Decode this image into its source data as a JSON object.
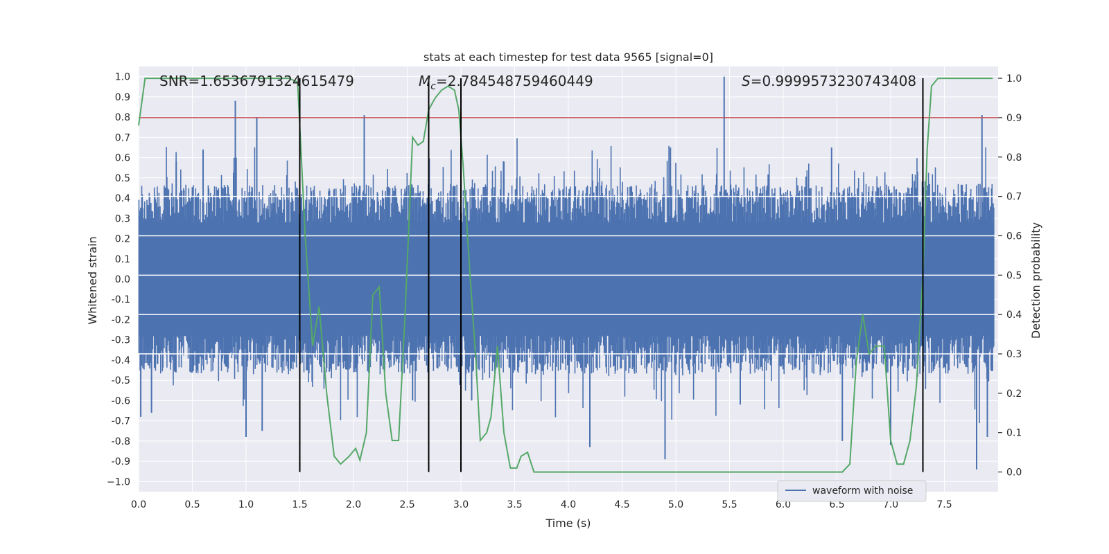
{
  "chart_data": {
    "type": "line",
    "title": "stats at each timestep for test data 9565 [signal=0]",
    "xlabel": "Time (s)",
    "ylabel": "Whitened strain",
    "y2label": "Detection probability",
    "xlim": [
      0.0,
      8.0
    ],
    "ylim": [
      -1.05,
      1.05
    ],
    "y2lim": [
      -0.05,
      1.03
    ],
    "xticks": [
      "0.0",
      "0.5",
      "1.0",
      "1.5",
      "2.0",
      "2.5",
      "3.0",
      "3.5",
      "4.0",
      "4.5",
      "5.0",
      "5.5",
      "6.0",
      "6.5",
      "7.0",
      "7.5"
    ],
    "yticks": [
      "1.0",
      "0.9",
      "0.8",
      "0.7",
      "0.6",
      "0.5",
      "0.4",
      "0.3",
      "0.2",
      "0.1",
      "0.0",
      "-0.1",
      "-0.2",
      "-0.3",
      "-0.4",
      "-0.5",
      "-0.6",
      "-0.7",
      "-0.8",
      "-0.9",
      "−1.0"
    ],
    "y2ticks": [
      "1.0",
      "0.9",
      "0.8",
      "0.7",
      "0.6",
      "0.5",
      "0.4",
      "0.3",
      "0.2",
      "0.1",
      "0.0"
    ],
    "annotations": {
      "snr": "SNR=1.6536791324615479",
      "mc_symbol": "M",
      "mc_sub": "c",
      "mc_value": "=2.784548759460449",
      "s_symbol": "S",
      "s_value": "=0.9999573230743408"
    },
    "threshold": {
      "value": 0.9,
      "axis": "y2",
      "color": "#c44e52"
    },
    "vlines": [
      1.5,
      2.7,
      3.0,
      7.3
    ],
    "waveform": {
      "name": "waveform with noise",
      "color": "#4c72b0",
      "envelope_upper": 0.42,
      "envelope_lower": -0.42,
      "spikes": [
        {
          "t": 0.9,
          "v": 0.88
        },
        {
          "t": 1.1,
          "v": 0.8
        },
        {
          "t": 2.1,
          "v": 0.81
        },
        {
          "t": 5.45,
          "v": 1.0
        },
        {
          "t": 7.85,
          "v": 0.81
        },
        {
          "t": 0.6,
          "v": 0.64
        },
        {
          "t": 0.35,
          "v": 0.58
        },
        {
          "t": 3.4,
          "v": 0.58
        },
        {
          "t": 4.95,
          "v": 0.65
        },
        {
          "t": 6.45,
          "v": 0.65
        },
        {
          "t": 0.02,
          "v": -0.68
        },
        {
          "t": 0.12,
          "v": -0.66
        },
        {
          "t": 1.0,
          "v": -0.78
        },
        {
          "t": 1.15,
          "v": -0.75
        },
        {
          "t": 2.55,
          "v": -0.6
        },
        {
          "t": 2.7,
          "v": -0.88
        },
        {
          "t": 4.2,
          "v": -0.83
        },
        {
          "t": 4.9,
          "v": -0.89
        },
        {
          "t": 6.55,
          "v": -0.8
        },
        {
          "t": 7.0,
          "v": -0.82
        },
        {
          "t": 7.8,
          "v": -0.94
        },
        {
          "t": 7.9,
          "v": -0.78
        },
        {
          "t": 3.1,
          "v": -0.6
        },
        {
          "t": 5.6,
          "v": -0.62
        }
      ]
    },
    "probability": {
      "color": "#55a868",
      "x": [
        0.0,
        0.06,
        0.1,
        0.2,
        0.4,
        0.6,
        0.8,
        1.0,
        1.2,
        1.4,
        1.48,
        1.55,
        1.62,
        1.68,
        1.75,
        1.82,
        1.88,
        1.96,
        2.02,
        2.06,
        2.12,
        2.18,
        2.24,
        2.3,
        2.36,
        2.42,
        2.48,
        2.55,
        2.6,
        2.65,
        2.7,
        2.76,
        2.82,
        2.88,
        2.94,
        2.98,
        3.02,
        3.08,
        3.14,
        3.18,
        3.24,
        3.28,
        3.34,
        3.4,
        3.46,
        3.52,
        3.56,
        3.62,
        3.68,
        3.74,
        3.8,
        3.9,
        4.0,
        4.2,
        4.5,
        5.0,
        5.5,
        6.0,
        6.2,
        6.4,
        6.55,
        6.62,
        6.68,
        6.74,
        6.8,
        6.86,
        6.94,
        7.0,
        7.06,
        7.12,
        7.18,
        7.24,
        7.3,
        7.34,
        7.38,
        7.44,
        7.5,
        7.7,
        7.95
      ],
      "y": [
        0.88,
        1.0,
        1.0,
        1.0,
        1.0,
        1.0,
        1.0,
        1.0,
        1.0,
        1.0,
        0.99,
        0.6,
        0.32,
        0.42,
        0.2,
        0.04,
        0.02,
        0.04,
        0.06,
        0.03,
        0.1,
        0.45,
        0.47,
        0.2,
        0.08,
        0.08,
        0.4,
        0.85,
        0.83,
        0.84,
        0.92,
        0.95,
        0.97,
        0.98,
        0.97,
        0.92,
        0.78,
        0.52,
        0.28,
        0.08,
        0.1,
        0.14,
        0.32,
        0.1,
        0.01,
        0.01,
        0.04,
        0.05,
        0.0,
        0.0,
        0.0,
        0.0,
        0.0,
        0.0,
        0.0,
        0.0,
        0.0,
        0.0,
        0.0,
        0.0,
        0.0,
        0.02,
        0.28,
        0.4,
        0.3,
        0.32,
        0.32,
        0.08,
        0.02,
        0.02,
        0.08,
        0.22,
        0.5,
        0.82,
        0.98,
        1.0,
        1.0,
        1.0,
        1.0
      ]
    },
    "legend": {
      "placement": "lower-right",
      "label": "waveform with noise"
    }
  }
}
